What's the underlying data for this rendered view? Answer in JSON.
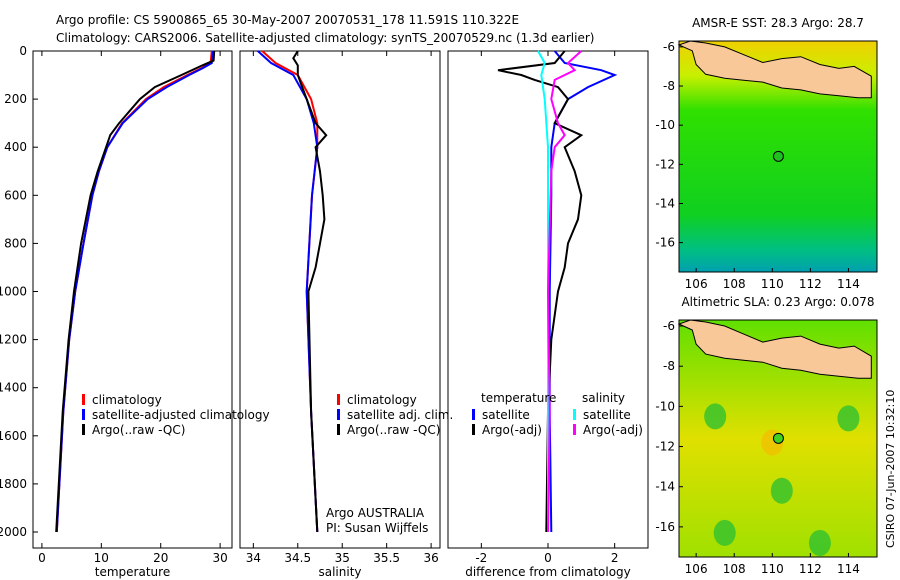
{
  "chart_data": [
    {
      "type": "line",
      "title": "Argo profile: CS 5900865_65 30-May-2007 20070531_178 11.591S 110.322E",
      "subtitle": "Climatology: CARS2006. Satellite-adjusted climatology: synTS_20070529.nc (1.3d earlier)",
      "xlabel": "temperature",
      "ylabel": "",
      "xlim": [
        -1.5,
        32
      ],
      "ylim": [
        2000,
        0
      ],
      "xticks": [
        0,
        10,
        20,
        30
      ],
      "yticks": [
        0,
        200,
        400,
        600,
        800,
        1000,
        1200,
        1400,
        1600,
        1800,
        2000
      ],
      "legend": [
        "climatology",
        "satellite-adjusted climatology",
        "Argo(..raw -QC)"
      ],
      "series": [
        {
          "name": "climatology",
          "color": "#ff0000",
          "depth": [
            0,
            50,
            70,
            100,
            150,
            200,
            300,
            400,
            500,
            600,
            800,
            1000,
            1200,
            1500,
            2000
          ],
          "values": [
            28.6,
            28.4,
            27,
            24.5,
            20.5,
            17.5,
            13.5,
            11,
            9.6,
            8.5,
            7,
            5.6,
            4.6,
            3.6,
            2.5
          ]
        },
        {
          "name": "satellite-adjusted climatology",
          "color": "#0000ff",
          "depth": [
            0,
            50,
            70,
            100,
            150,
            200,
            300,
            400,
            500,
            600,
            800,
            1000,
            1200,
            1500,
            2000
          ],
          "values": [
            28.8,
            28.6,
            27.2,
            24.8,
            21,
            17.8,
            13.6,
            11,
            9.6,
            8.5,
            7,
            5.6,
            4.6,
            3.6,
            2.5
          ]
        },
        {
          "name": "Argo(..raw -QC)",
          "color": "#000000",
          "depth": [
            0,
            40,
            60,
            100,
            150,
            200,
            300,
            350,
            400,
            500,
            600,
            800,
            1000,
            1200,
            1500,
            2000
          ],
          "values": [
            29,
            28.9,
            27,
            23.5,
            19,
            16.5,
            13,
            11.5,
            10.8,
            9.4,
            8.2,
            6.6,
            5.4,
            4.5,
            3.5,
            2.4
          ]
        }
      ]
    },
    {
      "type": "line",
      "xlabel": "salinity",
      "xlim": [
        33.85,
        36.1
      ],
      "ylim": [
        2000,
        0
      ],
      "xticks": [
        34,
        34.5,
        35,
        35.5,
        36
      ],
      "legend": [
        "climatology",
        "satellite adj. clim.",
        "Argo(..raw -QC)"
      ],
      "annotation": [
        "Argo AUSTRALIA",
        "PI: Susan Wijffels"
      ],
      "series": [
        {
          "name": "climatology",
          "color": "#ff0000",
          "depth": [
            0,
            50,
            100,
            200,
            300,
            400,
            600,
            1000,
            1500,
            2000
          ],
          "values": [
            34.1,
            34.25,
            34.5,
            34.65,
            34.72,
            34.72,
            34.66,
            34.6,
            34.65,
            34.72
          ]
        },
        {
          "name": "satellite adj. clim.",
          "color": "#0000ff",
          "depth": [
            0,
            50,
            100,
            200,
            300,
            400,
            600,
            1000,
            1500,
            2000
          ],
          "values": [
            34.05,
            34.2,
            34.45,
            34.6,
            34.68,
            34.72,
            34.66,
            34.6,
            34.65,
            34.72
          ]
        },
        {
          "name": "Argo(..raw -QC)",
          "color": "#000000",
          "depth": [
            0,
            30,
            60,
            100,
            150,
            200,
            300,
            350,
            400,
            500,
            600,
            700,
            800,
            900,
            1000,
            1500,
            2000
          ],
          "values": [
            34.5,
            34.45,
            34.5,
            34.5,
            34.55,
            34.6,
            34.7,
            34.82,
            34.7,
            34.75,
            34.78,
            34.8,
            34.75,
            34.7,
            34.62,
            34.65,
            34.72
          ]
        }
      ]
    },
    {
      "type": "line",
      "xlabel": "difference from climatology",
      "xlim": [
        -3,
        3
      ],
      "ylim": [
        2000,
        0
      ],
      "xticks": [
        -2,
        0,
        2
      ],
      "legend_titles": [
        "temperature",
        "salinity"
      ],
      "legend": [
        "satellite",
        "Argo(-adj)",
        "satellite",
        "Argo(-adj)"
      ],
      "series": [
        {
          "name": "temperature satellite",
          "color": "#0000ff",
          "depth": [
            0,
            50,
            80,
            100,
            150,
            200,
            300,
            400,
            600,
            1000,
            1500,
            2000
          ],
          "values": [
            0.2,
            0.5,
            1.6,
            2,
            1.2,
            0.6,
            0.2,
            0.1,
            0.1,
            0.05,
            0.05,
            0.1
          ]
        },
        {
          "name": "temperature Argo(-adj)",
          "color": "#000000",
          "depth": [
            0,
            50,
            80,
            100,
            120,
            150,
            200,
            300,
            350,
            400,
            500,
            600,
            700,
            800,
            900,
            1000,
            1200,
            1500,
            2000
          ],
          "values": [
            0.5,
            0.2,
            -1.5,
            -0.8,
            -0.4,
            0.3,
            0.6,
            0.2,
            1,
            0.5,
            0.8,
            1,
            0.9,
            0.6,
            0.5,
            0.3,
            0.1,
            0,
            -0.05
          ]
        },
        {
          "name": "salinity satellite",
          "color": "#00ffff",
          "depth": [
            0,
            50,
            100,
            200,
            400,
            600,
            1000,
            1500,
            2000
          ],
          "values": [
            -0.3,
            -0.1,
            -0.2,
            -0.1,
            0,
            0,
            0,
            0,
            0
          ]
        },
        {
          "name": "salinity Argo(-adj)",
          "color": "#ff00ff",
          "depth": [
            0,
            50,
            80,
            120,
            200,
            300,
            350,
            400,
            500,
            1000,
            1500,
            2000
          ],
          "values": [
            1,
            0.6,
            0.8,
            0.2,
            0.1,
            0.3,
            0.5,
            0.2,
            0.1,
            0,
            0.05,
            0
          ]
        }
      ]
    }
  ],
  "maps": [
    {
      "title": "AMSR-E SST: 28.3 Argo: 28.7",
      "xticks": [
        106,
        108,
        110,
        112,
        114
      ],
      "yticks": [
        -6,
        -8,
        -10,
        -12,
        -14,
        -16
      ],
      "lon": 110.322,
      "lat": -11.591
    },
    {
      "title": "Altimetric SLA: 0.23 Argo: 0.078",
      "xticks": [
        106,
        108,
        110,
        112,
        114
      ],
      "yticks": [
        -6,
        -8,
        -10,
        -12,
        -14,
        -16
      ],
      "lon": 110.322,
      "lat": -11.591
    }
  ],
  "credit": "CSIRO 07-Jun-2007 10:32:10"
}
